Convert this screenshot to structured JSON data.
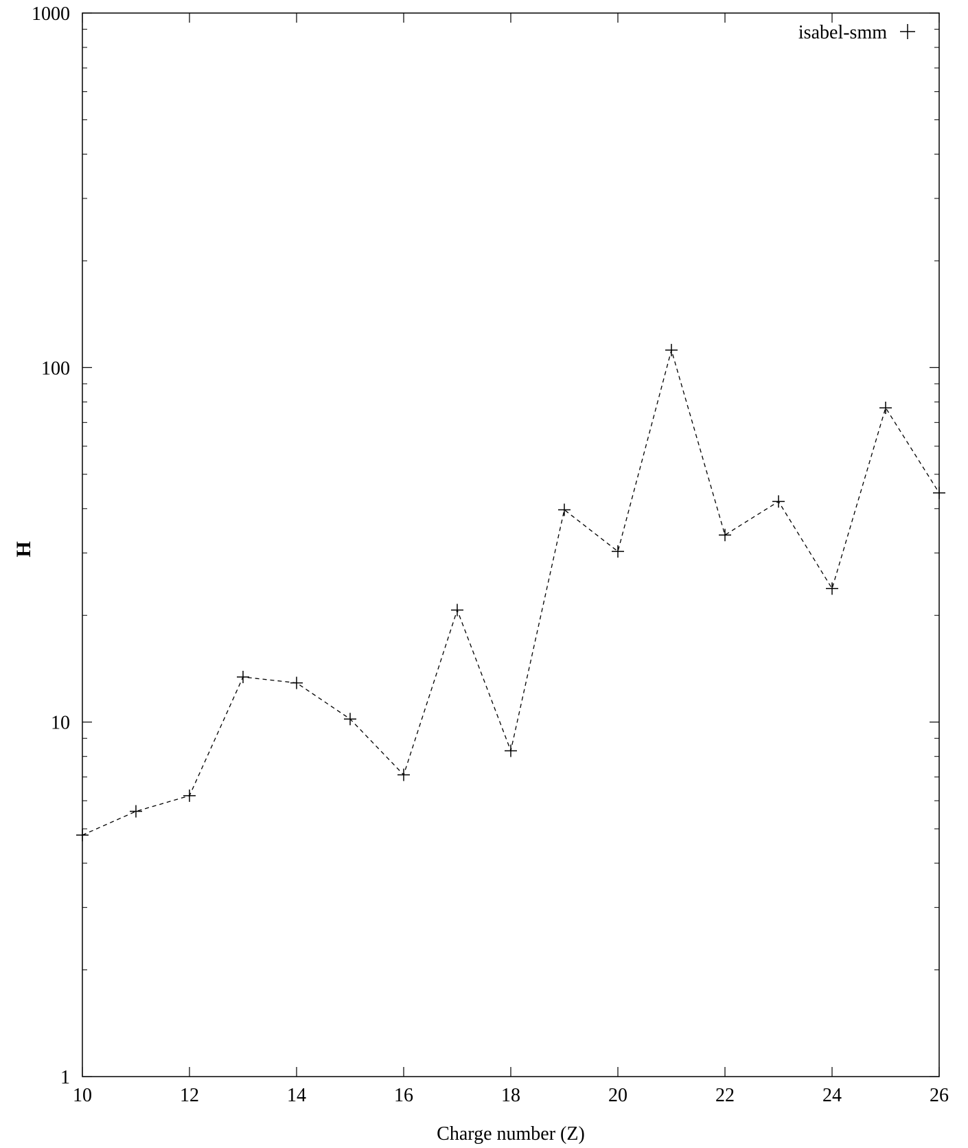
{
  "chart_data": {
    "type": "line",
    "xlabel": "Charge number (Z)",
    "ylabel": "H",
    "xlim": [
      10,
      26
    ],
    "ylim": [
      1,
      1000
    ],
    "yscale": "log",
    "x_ticks": [
      10,
      12,
      14,
      16,
      18,
      20,
      22,
      24,
      26
    ],
    "y_ticks": [
      1,
      10,
      100,
      1000
    ],
    "x_tick_labels": [
      "10",
      "12",
      "14",
      "16",
      "18",
      "20",
      "22",
      "24",
      "26"
    ],
    "y_tick_labels": [
      "1",
      "10",
      "100",
      "1000"
    ],
    "grid": false,
    "legend_position": "top-right",
    "series": [
      {
        "name": "isabel-smm",
        "marker": "plus",
        "line_style": "dashed",
        "color": "#000000",
        "x": [
          10,
          11,
          12,
          13,
          14,
          15,
          16,
          17,
          18,
          19,
          20,
          21,
          22,
          23,
          24,
          25,
          26
        ],
        "y": [
          4.8,
          5.6,
          6.2,
          13.4,
          12.9,
          10.2,
          7.1,
          20.7,
          8.3,
          39.7,
          30.3,
          112,
          33.7,
          41.9,
          23.8,
          77,
          44.3
        ]
      }
    ]
  }
}
